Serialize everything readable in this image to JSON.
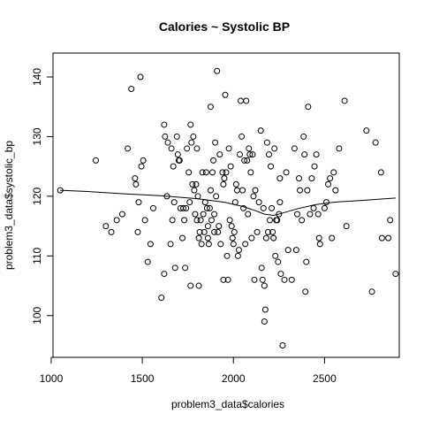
{
  "chart_data": {
    "type": "scatter",
    "title": "Calories ~ Systolic BP",
    "xlabel": "problem3_data$calories",
    "ylabel": "problem3_data$systolic_bp",
    "xlim": [
      1010,
      2910
    ],
    "ylim": [
      93,
      144
    ],
    "x_ticks": [
      1000,
      1500,
      2000,
      2500
    ],
    "y_ticks": [
      100,
      110,
      120,
      130,
      140
    ],
    "grid": false,
    "legend": "none",
    "colors": {
      "points": "#000000",
      "line": "#000000",
      "background": "#ffffff"
    },
    "points": [
      [
        1050,
        121
      ],
      [
        1245,
        126
      ],
      [
        1300,
        115
      ],
      [
        1330,
        114
      ],
      [
        1360,
        116
      ],
      [
        1390,
        117
      ],
      [
        1420,
        128
      ],
      [
        1440,
        138
      ],
      [
        1460,
        123
      ],
      [
        1465,
        122
      ],
      [
        1475,
        114
      ],
      [
        1480,
        119
      ],
      [
        1490,
        140
      ],
      [
        1495,
        125
      ],
      [
        1505,
        126
      ],
      [
        1515,
        116
      ],
      [
        1530,
        109
      ],
      [
        1545,
        112
      ],
      [
        1560,
        118
      ],
      [
        1605,
        103
      ],
      [
        1620,
        107
      ],
      [
        1620,
        132
      ],
      [
        1625,
        130
      ],
      [
        1635,
        120
      ],
      [
        1640,
        129
      ],
      [
        1655,
        112
      ],
      [
        1660,
        128
      ],
      [
        1665,
        116
      ],
      [
        1670,
        125
      ],
      [
        1675,
        119
      ],
      [
        1680,
        108
      ],
      [
        1690,
        130
      ],
      [
        1695,
        127
      ],
      [
        1700,
        126
      ],
      [
        1705,
        126
      ],
      [
        1710,
        118
      ],
      [
        1720,
        113
      ],
      [
        1725,
        118
      ],
      [
        1730,
        116
      ],
      [
        1735,
        108
      ],
      [
        1740,
        118
      ],
      [
        1745,
        128
      ],
      [
        1755,
        124
      ],
      [
        1760,
        119
      ],
      [
        1765,
        105
      ],
      [
        1765,
        132
      ],
      [
        1770,
        129
      ],
      [
        1775,
        122
      ],
      [
        1780,
        130
      ],
      [
        1785,
        121
      ],
      [
        1790,
        117
      ],
      [
        1795,
        122
      ],
      [
        1800,
        116
      ],
      [
        1800,
        128
      ],
      [
        1805,
        120
      ],
      [
        1810,
        113
      ],
      [
        1810,
        105
      ],
      [
        1815,
        114
      ],
      [
        1820,
        116
      ],
      [
        1825,
        112
      ],
      [
        1830,
        124
      ],
      [
        1835,
        117
      ],
      [
        1840,
        114
      ],
      [
        1845,
        119
      ],
      [
        1850,
        124
      ],
      [
        1855,
        118
      ],
      [
        1860,
        115
      ],
      [
        1860,
        113
      ],
      [
        1865,
        112
      ],
      [
        1870,
        118
      ],
      [
        1875,
        121
      ],
      [
        1875,
        135
      ],
      [
        1880,
        116
      ],
      [
        1885,
        124
      ],
      [
        1890,
        126
      ],
      [
        1895,
        114
      ],
      [
        1895,
        117
      ],
      [
        1900,
        129
      ],
      [
        1905,
        120
      ],
      [
        1910,
        141
      ],
      [
        1915,
        114
      ],
      [
        1920,
        115
      ],
      [
        1925,
        127
      ],
      [
        1930,
        112
      ],
      [
        1940,
        124
      ],
      [
        1945,
        106
      ],
      [
        1945,
        122
      ],
      [
        1950,
        123
      ],
      [
        1955,
        137
      ],
      [
        1960,
        124
      ],
      [
        1965,
        110
      ],
      [
        1970,
        106
      ],
      [
        1975,
        128
      ],
      [
        1980,
        116
      ],
      [
        1985,
        125
      ],
      [
        1990,
        115
      ],
      [
        1995,
        113
      ],
      [
        2000,
        112
      ],
      [
        2005,
        114
      ],
      [
        2010,
        119
      ],
      [
        2015,
        122
      ],
      [
        2020,
        121
      ],
      [
        2025,
        110
      ],
      [
        2030,
        111
      ],
      [
        2035,
        127
      ],
      [
        2040,
        136
      ],
      [
        2045,
        130
      ],
      [
        2050,
        121
      ],
      [
        2055,
        118
      ],
      [
        2060,
        126
      ],
      [
        2065,
        112
      ],
      [
        2070,
        136
      ],
      [
        2075,
        126
      ],
      [
        2080,
        117
      ],
      [
        2085,
        128
      ],
      [
        2090,
        127
      ],
      [
        2095,
        124
      ],
      [
        2100,
        113
      ],
      [
        2105,
        127
      ],
      [
        2110,
        120
      ],
      [
        2115,
        106
      ],
      [
        2120,
        121
      ],
      [
        2130,
        114
      ],
      [
        2140,
        119
      ],
      [
        2150,
        131
      ],
      [
        2155,
        108
      ],
      [
        2160,
        106
      ],
      [
        2165,
        118
      ],
      [
        2170,
        105
      ],
      [
        2170,
        99
      ],
      [
        2175,
        101
      ],
      [
        2180,
        113
      ],
      [
        2185,
        129
      ],
      [
        2190,
        114
      ],
      [
        2195,
        127
      ],
      [
        2200,
        116
      ],
      [
        2205,
        125
      ],
      [
        2210,
        118
      ],
      [
        2215,
        114
      ],
      [
        2220,
        113
      ],
      [
        2225,
        128
      ],
      [
        2230,
        110
      ],
      [
        2235,
        116
      ],
      [
        2240,
        116
      ],
      [
        2245,
        109
      ],
      [
        2250,
        117
      ],
      [
        2255,
        119
      ],
      [
        2255,
        123
      ],
      [
        2260,
        107
      ],
      [
        2270,
        95
      ],
      [
        2280,
        106
      ],
      [
        2290,
        124
      ],
      [
        2300,
        111
      ],
      [
        2320,
        106
      ],
      [
        2335,
        128
      ],
      [
        2345,
        111
      ],
      [
        2350,
        117
      ],
      [
        2360,
        123
      ],
      [
        2365,
        121
      ],
      [
        2375,
        116
      ],
      [
        2385,
        130
      ],
      [
        2390,
        127
      ],
      [
        2395,
        104
      ],
      [
        2400,
        109
      ],
      [
        2405,
        121
      ],
      [
        2410,
        135
      ],
      [
        2420,
        117
      ],
      [
        2430,
        123
      ],
      [
        2440,
        118
      ],
      [
        2445,
        125
      ],
      [
        2455,
        127
      ],
      [
        2465,
        117
      ],
      [
        2470,
        113
      ],
      [
        2475,
        112
      ],
      [
        2500,
        118
      ],
      [
        2510,
        119
      ],
      [
        2520,
        122
      ],
      [
        2530,
        123
      ],
      [
        2540,
        113
      ],
      [
        2550,
        124
      ],
      [
        2560,
        121
      ],
      [
        2580,
        128
      ],
      [
        2610,
        136
      ],
      [
        2620,
        115
      ],
      [
        2730,
        131
      ],
      [
        2760,
        104
      ],
      [
        2780,
        129
      ],
      [
        2810,
        124
      ],
      [
        2815,
        113
      ],
      [
        2850,
        113
      ],
      [
        2860,
        116
      ],
      [
        2890,
        107
      ]
    ],
    "smooth_line": [
      [
        1050,
        121.0
      ],
      [
        1200,
        120.8
      ],
      [
        1400,
        120.4
      ],
      [
        1600,
        120.1
      ],
      [
        1800,
        119.6
      ],
      [
        1950,
        119.0
      ],
      [
        2050,
        118.3
      ],
      [
        2120,
        117.6
      ],
      [
        2170,
        117.0
      ],
      [
        2220,
        116.8
      ],
      [
        2260,
        117.1
      ],
      [
        2350,
        117.9
      ],
      [
        2450,
        118.6
      ],
      [
        2550,
        119.0
      ],
      [
        2700,
        119.3
      ],
      [
        2890,
        119.7
      ]
    ]
  }
}
